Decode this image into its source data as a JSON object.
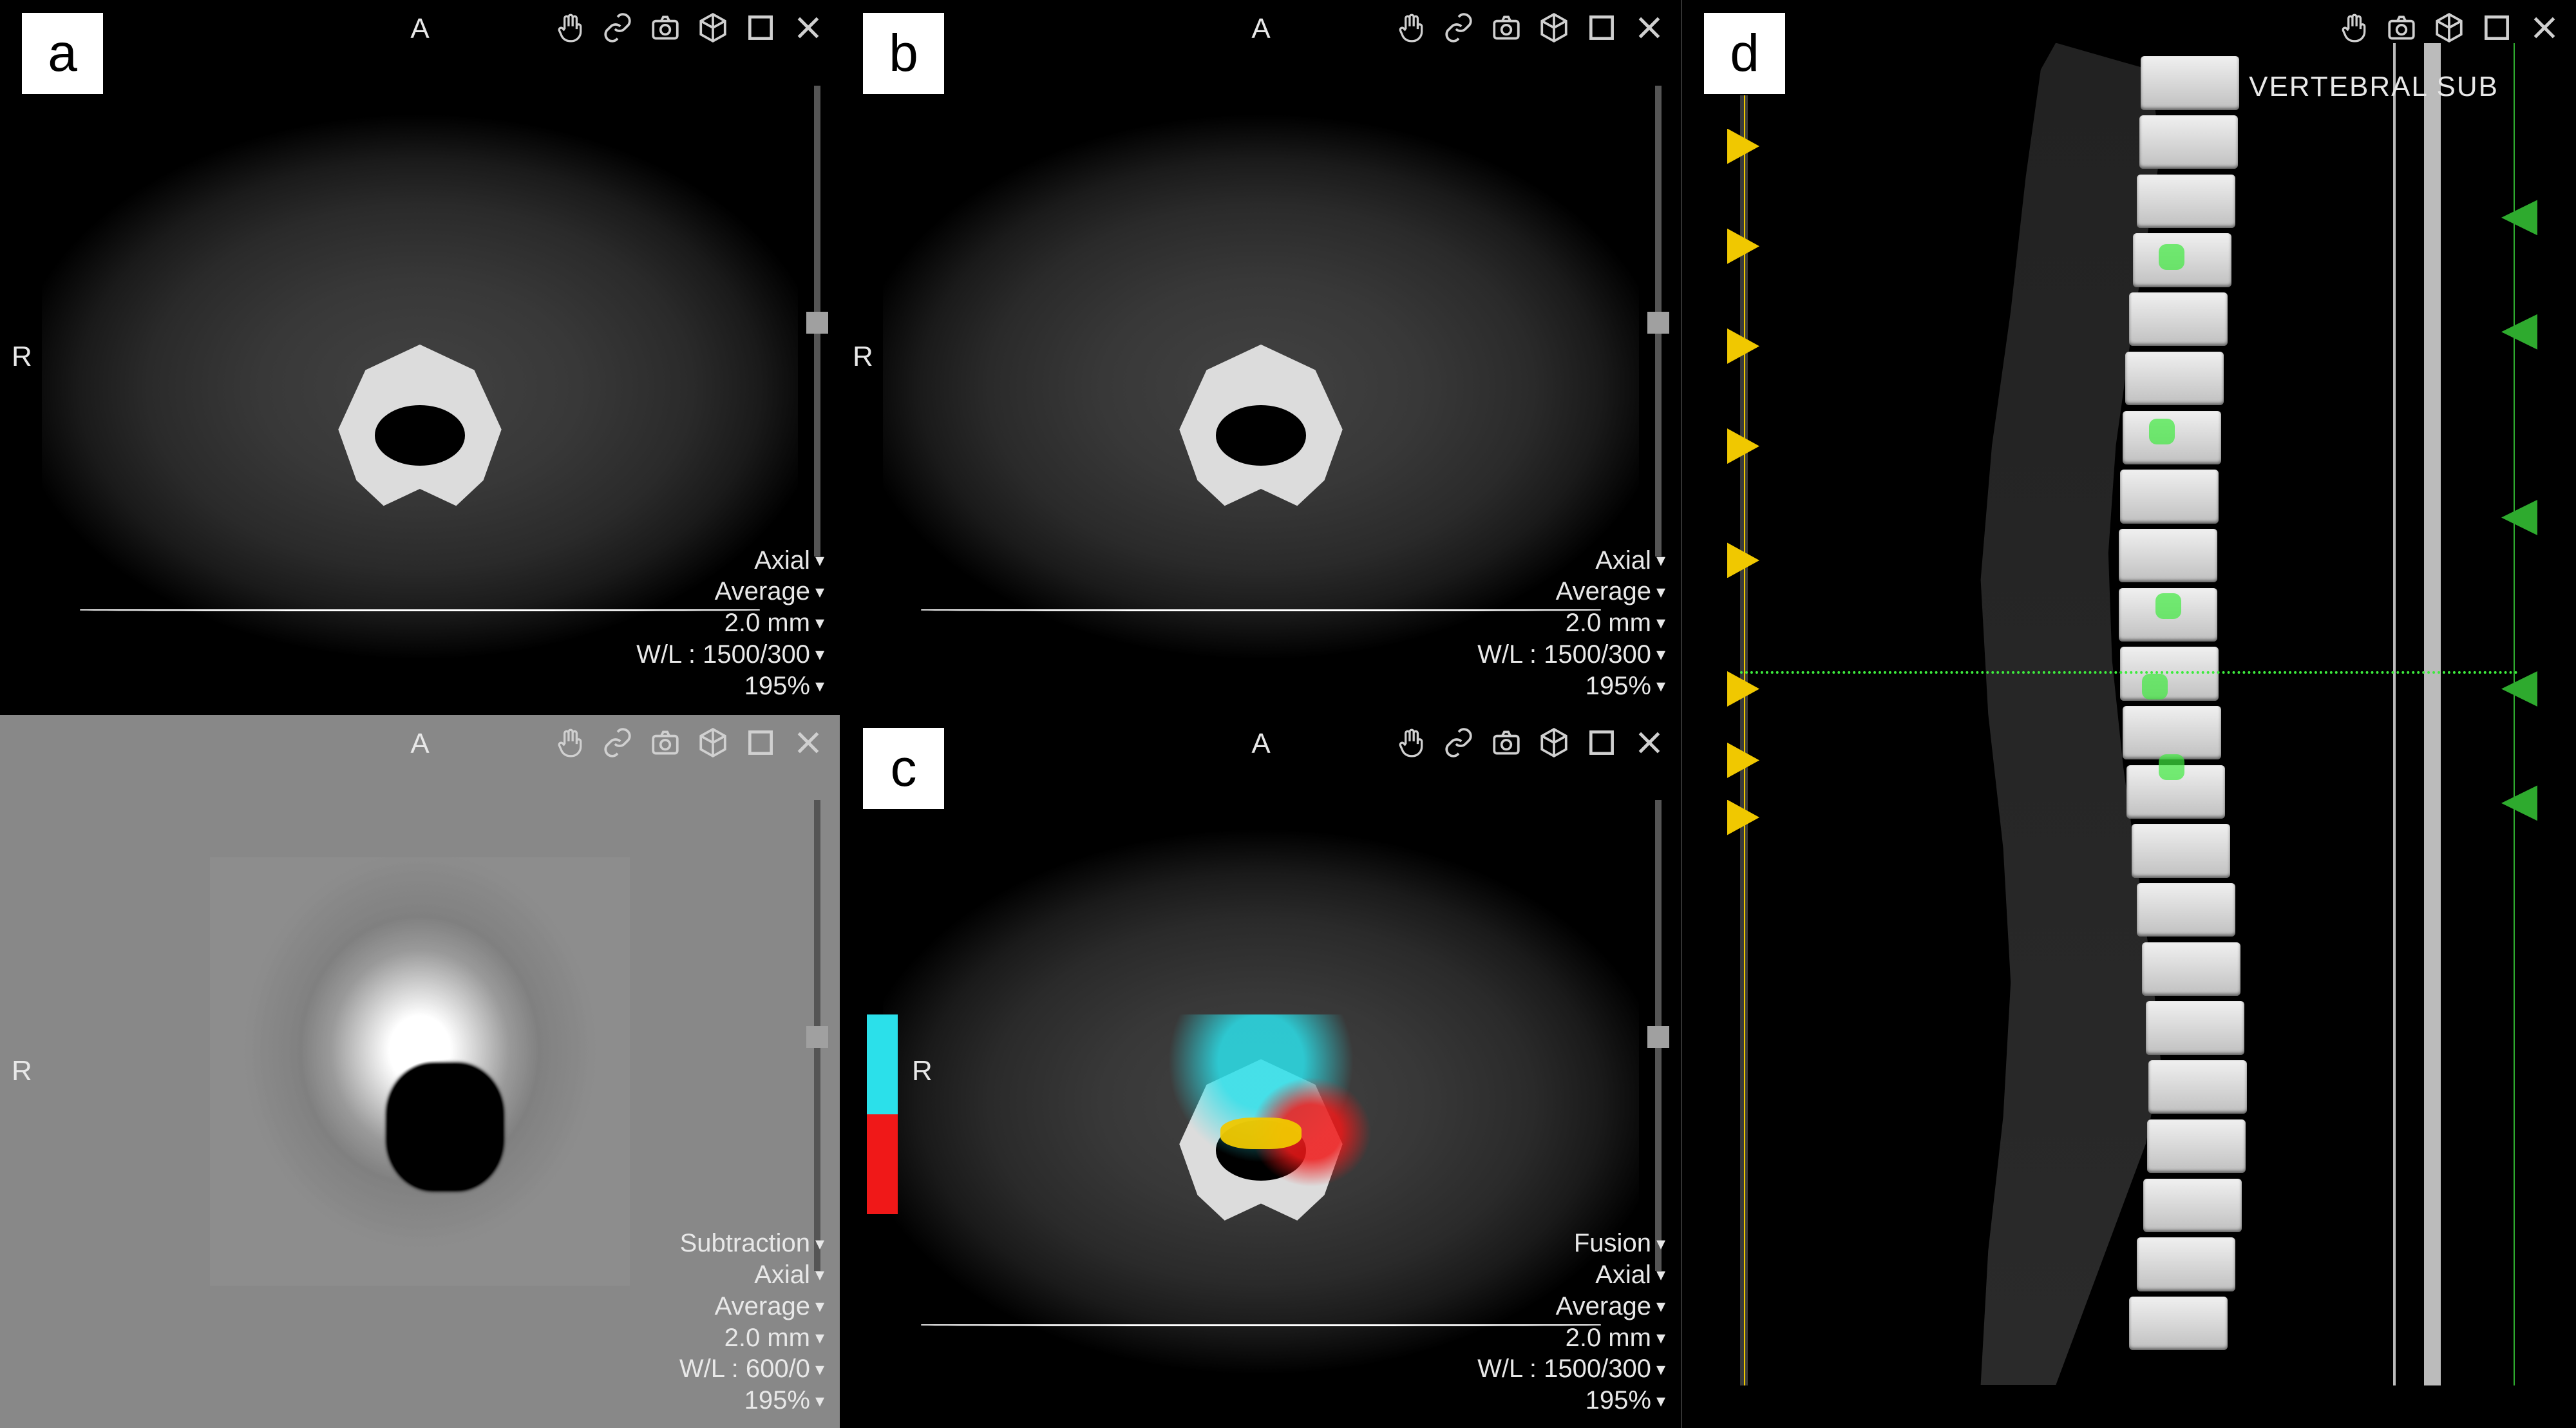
{
  "palette": {
    "background": "#000000",
    "text": "#e8e8e8",
    "slider": "#555555",
    "cyan": "#2be0ea",
    "red": "#f01818",
    "yellow": "#f0c800",
    "green": "#3eea3e"
  },
  "orientation": {
    "anterior": "A",
    "right": "R"
  },
  "panels": {
    "a": {
      "letter": "a",
      "background": "ct-axial-dark",
      "info": {
        "view": "Axial",
        "projection": "Average",
        "thickness": "2.0 mm",
        "window_level": "W/L : 1500/300",
        "zoom": "195%"
      }
    },
    "b": {
      "letter": "b",
      "background": "ct-axial-dark",
      "info": {
        "view": "Axial",
        "projection": "Average",
        "thickness": "2.0 mm",
        "window_level": "W/L : 1500/300",
        "zoom": "195%"
      }
    },
    "sub": {
      "background": "subtraction-gray",
      "info": {
        "mode": "Subtraction",
        "view": "Axial",
        "projection": "Average",
        "thickness": "2.0 mm",
        "window_level": "W/L : 600/0",
        "zoom": "195%"
      }
    },
    "c": {
      "letter": "c",
      "background": "ct-axial-dark",
      "colorbar": {
        "top": "#2be0ea",
        "bottom": "#f01818"
      },
      "overlay_colors": {
        "cyan": "#2be0ea",
        "red": "#f01818",
        "yellow": "#f0c800"
      },
      "info": {
        "mode": "Fusion",
        "view": "Axial",
        "projection": "Average",
        "thickness": "2.0 mm",
        "window_level": "W/L : 1500/300",
        "zoom": "195%"
      }
    },
    "d": {
      "letter": "d",
      "label": "VERTEBRAL SUB",
      "scout_left_color": "#f0c800",
      "scout_right_color": "#2eaa2e",
      "crosshair_y_percent": 47,
      "scout_markers_left_pct": [
        9,
        16,
        23,
        30,
        38,
        47,
        52,
        56
      ],
      "scout_markers_right_pct": [
        14,
        22,
        35,
        47,
        55
      ]
    }
  },
  "toolbar": {
    "full": [
      "hand",
      "link",
      "camera",
      "cube",
      "maximize",
      "close"
    ],
    "short": [
      "hand",
      "camera",
      "cube",
      "maximize",
      "close"
    ]
  }
}
